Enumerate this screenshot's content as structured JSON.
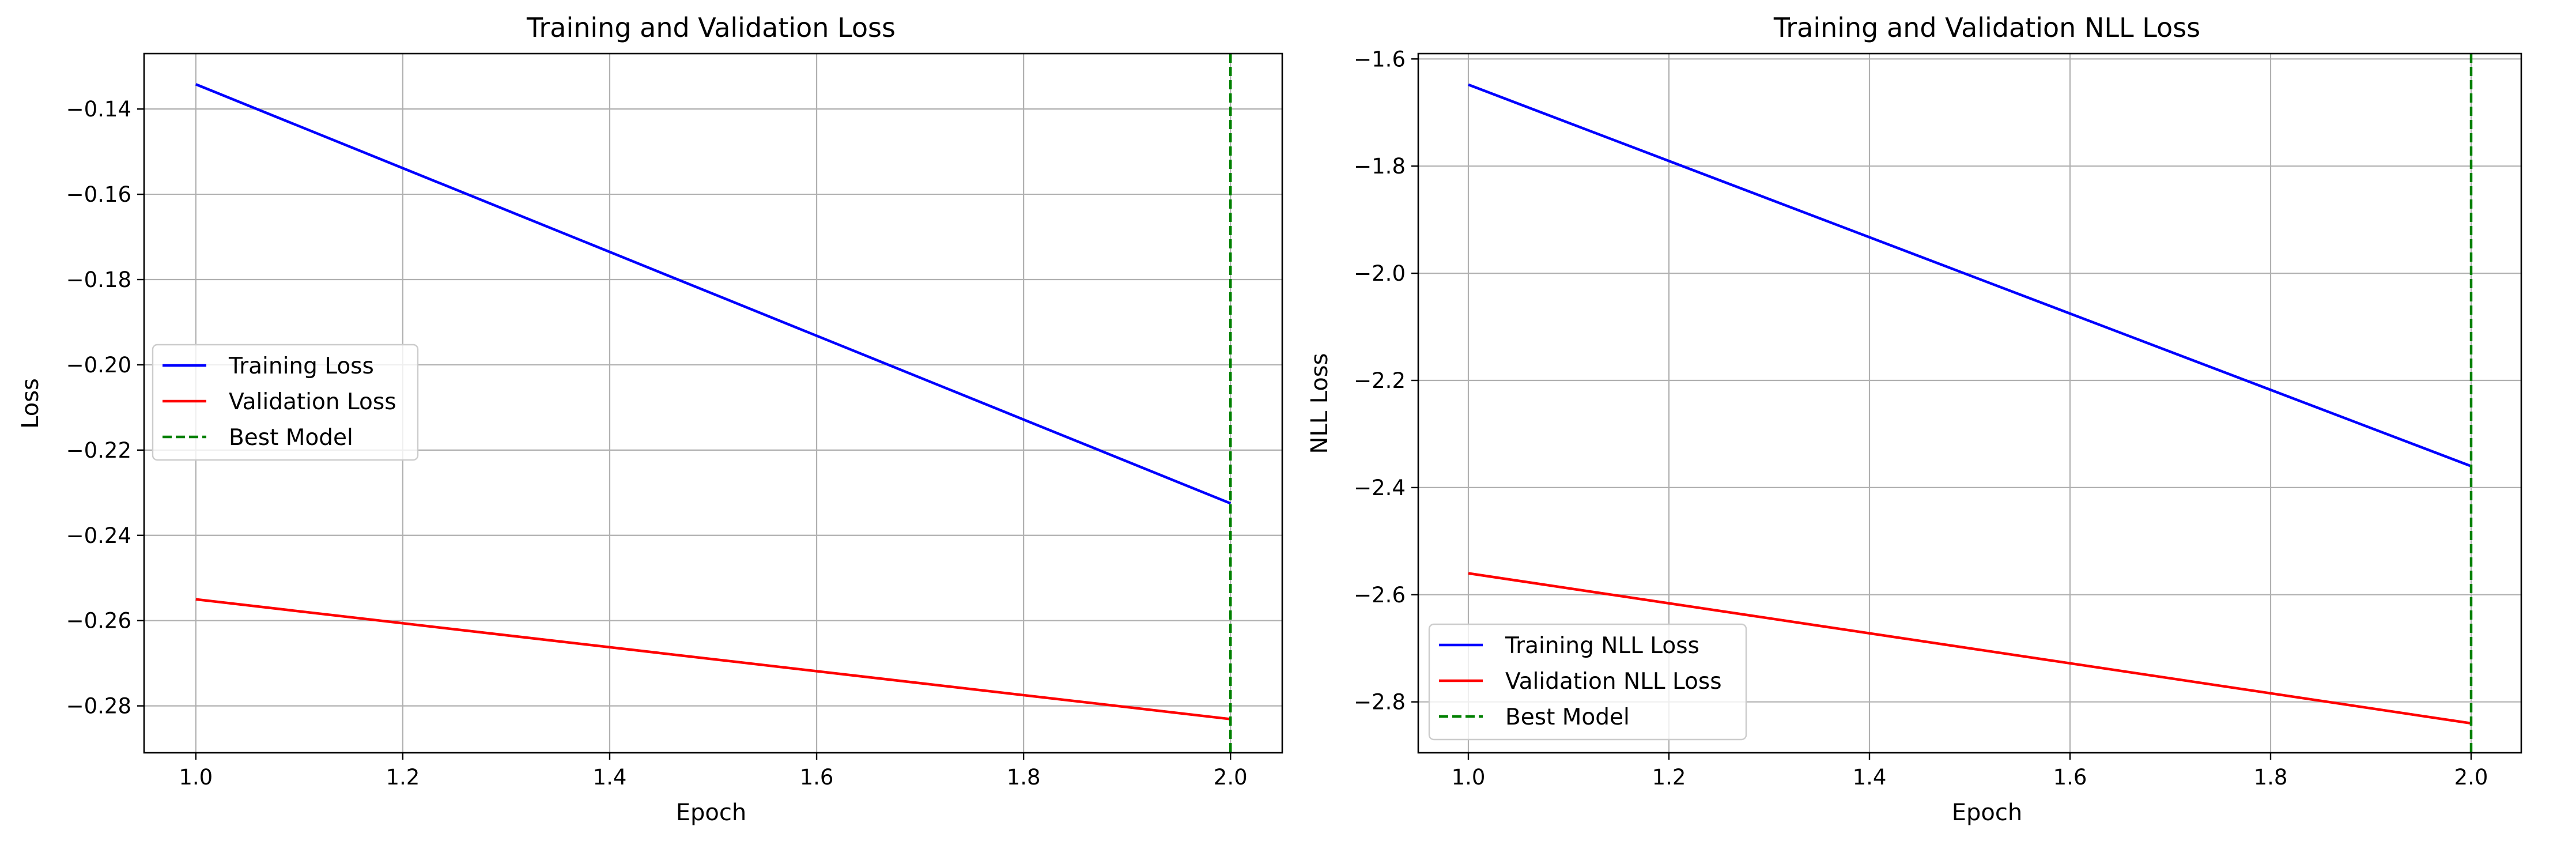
{
  "chart_data": [
    {
      "type": "line",
      "title": "Training and Validation Loss",
      "xlabel": "Epoch",
      "ylabel": "Loss",
      "xlim": [
        0.95,
        2.05
      ],
      "ylim": [
        -0.291,
        -0.127
      ],
      "xticks": [
        1.0,
        1.2,
        1.4,
        1.6,
        1.8,
        2.0
      ],
      "xtick_labels": [
        "1.0",
        "1.2",
        "1.4",
        "1.6",
        "1.8",
        "2.0"
      ],
      "yticks": [
        -0.28,
        -0.26,
        -0.24,
        -0.22,
        -0.2,
        -0.18,
        -0.16,
        -0.14
      ],
      "ytick_labels": [
        "−0.28",
        "−0.26",
        "−0.24",
        "−0.22",
        "−0.20",
        "−0.18",
        "−0.16",
        "−0.14"
      ],
      "grid": true,
      "legend_position": "center-left",
      "series": [
        {
          "name": "Training Loss",
          "color": "#0000ff",
          "style": "solid",
          "x": [
            1.0,
            2.0
          ],
          "y": [
            -0.1342,
            -0.2325
          ]
        },
        {
          "name": "Validation Loss",
          "color": "#ff0000",
          "style": "solid",
          "x": [
            1.0,
            2.0
          ],
          "y": [
            -0.255,
            -0.2831
          ]
        }
      ],
      "vline": {
        "name": "Best Model",
        "color": "#008000",
        "style": "dashed",
        "x": 2.0
      }
    },
    {
      "type": "line",
      "title": "Training and Validation NLL Loss",
      "xlabel": "Epoch",
      "ylabel": "NLL Loss",
      "xlim": [
        0.95,
        2.05
      ],
      "ylim": [
        -2.895,
        -1.59
      ],
      "xticks": [
        1.0,
        1.2,
        1.4,
        1.6,
        1.8,
        2.0
      ],
      "xtick_labels": [
        "1.0",
        "1.2",
        "1.4",
        "1.6",
        "1.8",
        "2.0"
      ],
      "yticks": [
        -2.8,
        -2.6,
        -2.4,
        -2.2,
        -2.0,
        -1.8,
        -1.6
      ],
      "ytick_labels": [
        "−2.8",
        "−2.6",
        "−2.4",
        "−2.2",
        "−2.0",
        "−1.8",
        "−1.6"
      ],
      "grid": true,
      "legend_position": "lower-left",
      "series": [
        {
          "name": "Training NLL Loss",
          "color": "#0000ff",
          "style": "solid",
          "x": [
            1.0,
            2.0
          ],
          "y": [
            -1.648,
            -2.36
          ]
        },
        {
          "name": "Validation NLL Loss",
          "color": "#ff0000",
          "style": "solid",
          "x": [
            1.0,
            2.0
          ],
          "y": [
            -2.56,
            -2.84
          ]
        }
      ],
      "vline": {
        "name": "Best Model",
        "color": "#008000",
        "style": "dashed",
        "x": 2.0
      }
    }
  ]
}
